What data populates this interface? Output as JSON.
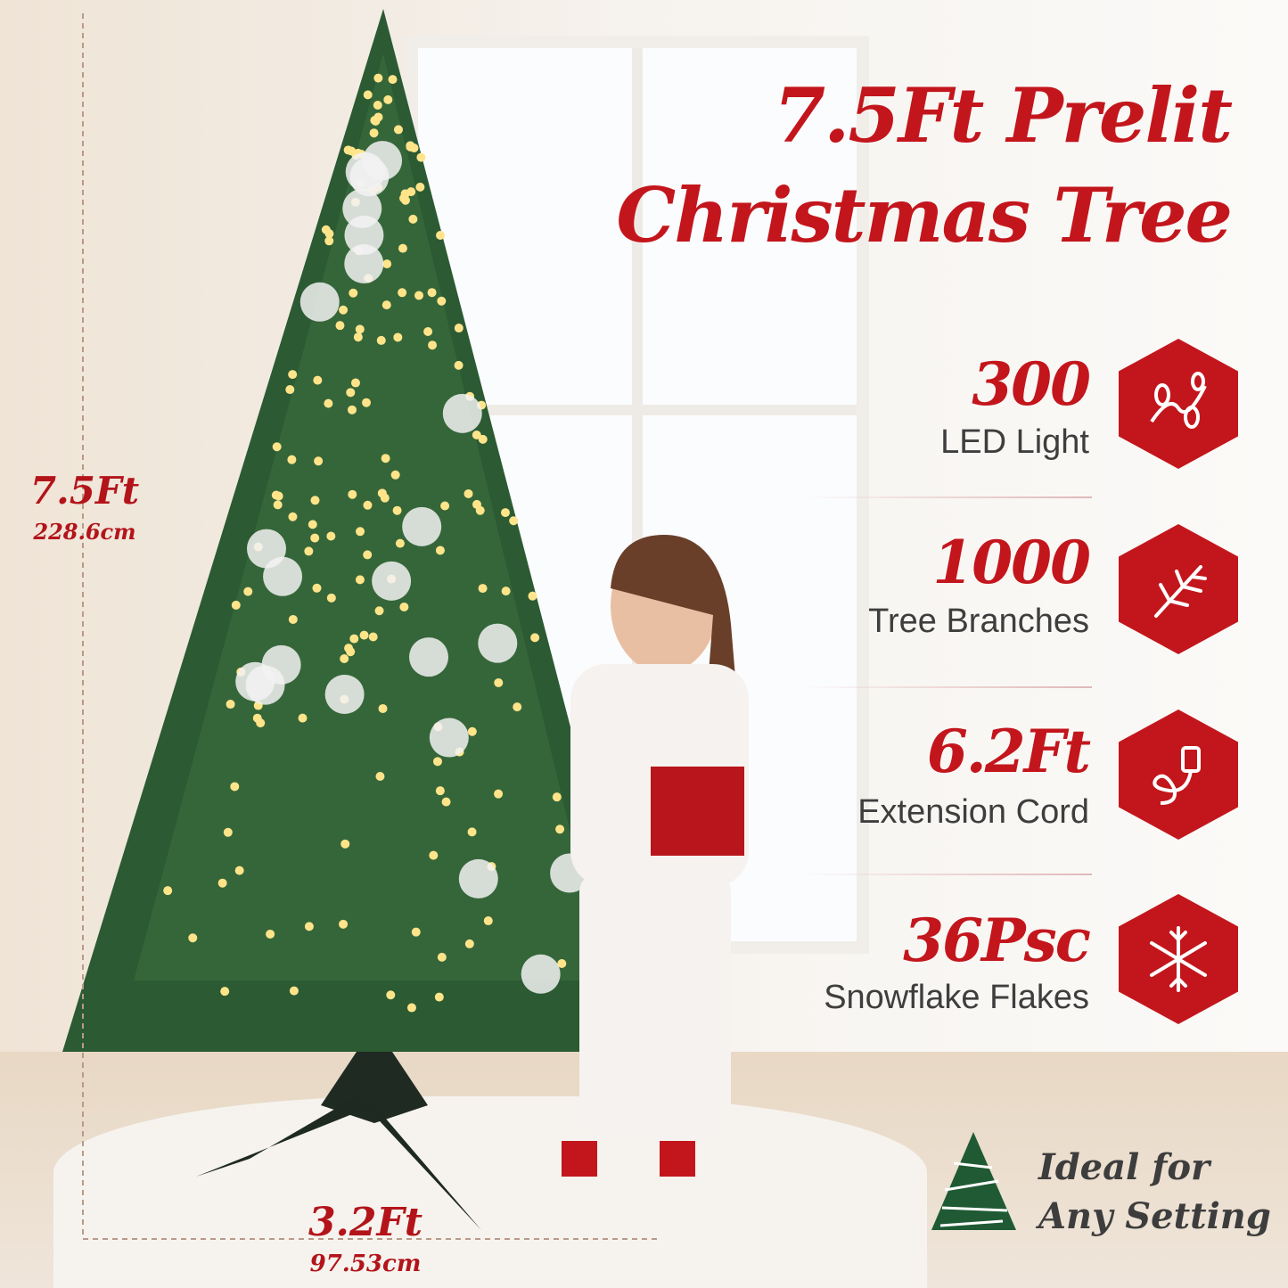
{
  "title": {
    "line1": "7.5Ft Prelit",
    "line2": "Christmas Tree"
  },
  "features": [
    {
      "number": "300",
      "label": "LED Light",
      "icon": "string-lights-icon"
    },
    {
      "number": "1000",
      "label": "Tree Branches",
      "icon": "branch-icon"
    },
    {
      "number": "6.2Ft",
      "label": "Extension Cord",
      "icon": "power-cord-icon"
    },
    {
      "number": "36Psc",
      "label": "Snowflake Flakes",
      "icon": "snowflake-icon"
    }
  ],
  "dimensions": {
    "height_ft": "7.5Ft",
    "height_cm": "228.6cm",
    "width_ft": "3.2Ft",
    "width_cm": "97.53cm"
  },
  "badge": {
    "line1": "Ideal for",
    "line2": "Any Setting",
    "icon": "christmas-tree-icon"
  },
  "colors": {
    "accent": "#c3161c",
    "tree": "#1f5a34",
    "text": "#3e3e3e"
  }
}
